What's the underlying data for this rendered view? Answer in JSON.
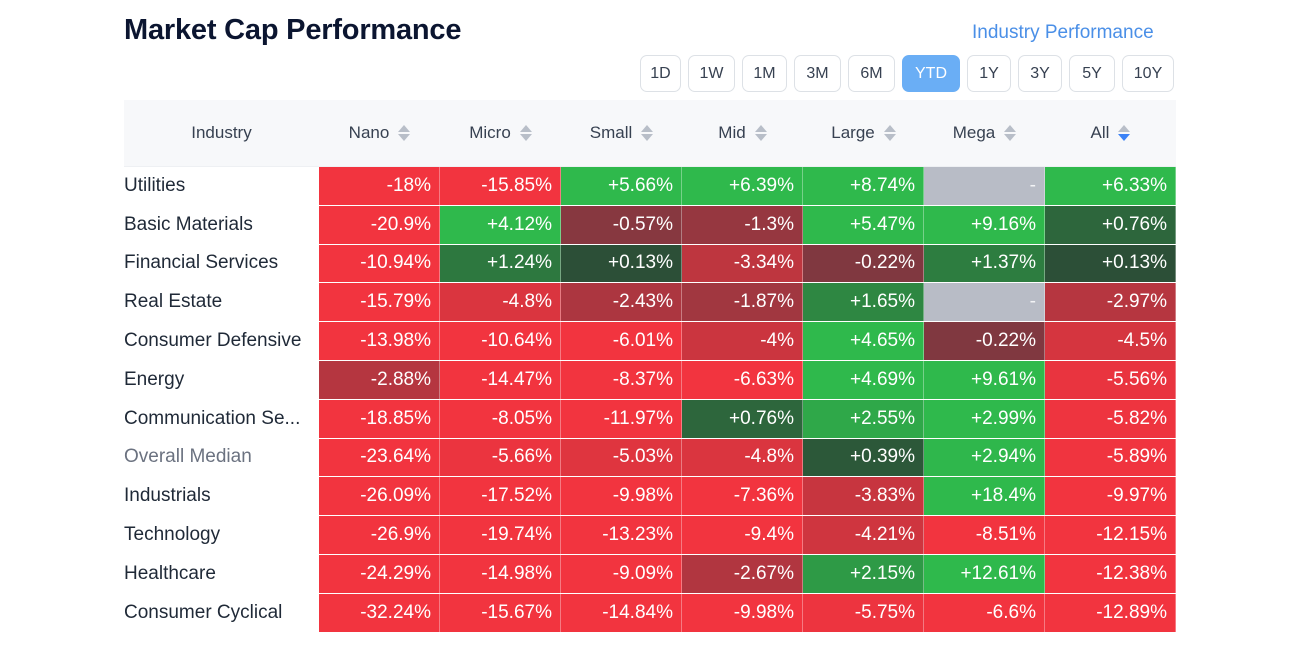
{
  "header": {
    "title": "Market Cap Performance",
    "industry_link": "Industry Performance"
  },
  "periods": {
    "items": [
      "1D",
      "1W",
      "1M",
      "3M",
      "6M",
      "YTD",
      "1Y",
      "3Y",
      "5Y",
      "10Y"
    ],
    "active": "YTD"
  },
  "table": {
    "header_industry": "Industry",
    "columns": [
      "Nano",
      "Micro",
      "Small",
      "Mid",
      "Large",
      "Mega",
      "All"
    ],
    "sorted_column": "All",
    "rows": [
      {
        "label": "Utilities",
        "values": [
          "-18%",
          "-15.85%",
          "+5.66%",
          "+6.39%",
          "+8.74%",
          "-",
          "+6.33%"
        ]
      },
      {
        "label": "Basic Materials",
        "values": [
          "-20.9%",
          "+4.12%",
          "-0.57%",
          "-1.3%",
          "+5.47%",
          "+9.16%",
          "+0.76%"
        ]
      },
      {
        "label": "Financial Services",
        "values": [
          "-10.94%",
          "+1.24%",
          "+0.13%",
          "-3.34%",
          "-0.22%",
          "+1.37%",
          "+0.13%"
        ]
      },
      {
        "label": "Real Estate",
        "values": [
          "-15.79%",
          "-4.8%",
          "-2.43%",
          "-1.87%",
          "+1.65%",
          "-",
          "-2.97%"
        ]
      },
      {
        "label": "Consumer Defensive",
        "values": [
          "-13.98%",
          "-10.64%",
          "-6.01%",
          "-4%",
          "+4.65%",
          "-0.22%",
          "-4.5%"
        ]
      },
      {
        "label": "Energy",
        "values": [
          "-2.88%",
          "-14.47%",
          "-8.37%",
          "-6.63%",
          "+4.69%",
          "+9.61%",
          "-5.56%"
        ]
      },
      {
        "label": "Communication Se...",
        "values": [
          "-18.85%",
          "-8.05%",
          "-11.97%",
          "+0.76%",
          "+2.55%",
          "+2.99%",
          "-5.82%"
        ]
      },
      {
        "label": "Overall Median",
        "values": [
          "-23.64%",
          "-5.66%",
          "-5.03%",
          "-4.8%",
          "+0.39%",
          "+2.94%",
          "-5.89%"
        ]
      },
      {
        "label": "Industrials",
        "values": [
          "-26.09%",
          "-17.52%",
          "-9.98%",
          "-7.36%",
          "-3.83%",
          "+18.4%",
          "-9.97%"
        ]
      },
      {
        "label": "Technology",
        "values": [
          "-26.9%",
          "-19.74%",
          "-13.23%",
          "-9.4%",
          "-4.21%",
          "-8.51%",
          "-12.15%"
        ]
      },
      {
        "label": "Healthcare",
        "values": [
          "-24.29%",
          "-14.98%",
          "-9.09%",
          "-2.67%",
          "+2.15%",
          "+12.61%",
          "-12.38%"
        ]
      },
      {
        "label": "Consumer Cyclical",
        "values": [
          "-32.24%",
          "-15.67%",
          "-14.84%",
          "-9.98%",
          "-5.75%",
          "-6.6%",
          "-12.89%"
        ]
      }
    ]
  },
  "colors": {
    "title": "#0b1530",
    "link": "#4a8fe7",
    "active_period": "#6aaef5",
    "neutral_cell": "#b8bcc6",
    "positive_strong": "#2fb94c",
    "positive_weak": "#2c4a36",
    "negative_strong": "#f2343f",
    "negative_weak": "#7c3840"
  }
}
